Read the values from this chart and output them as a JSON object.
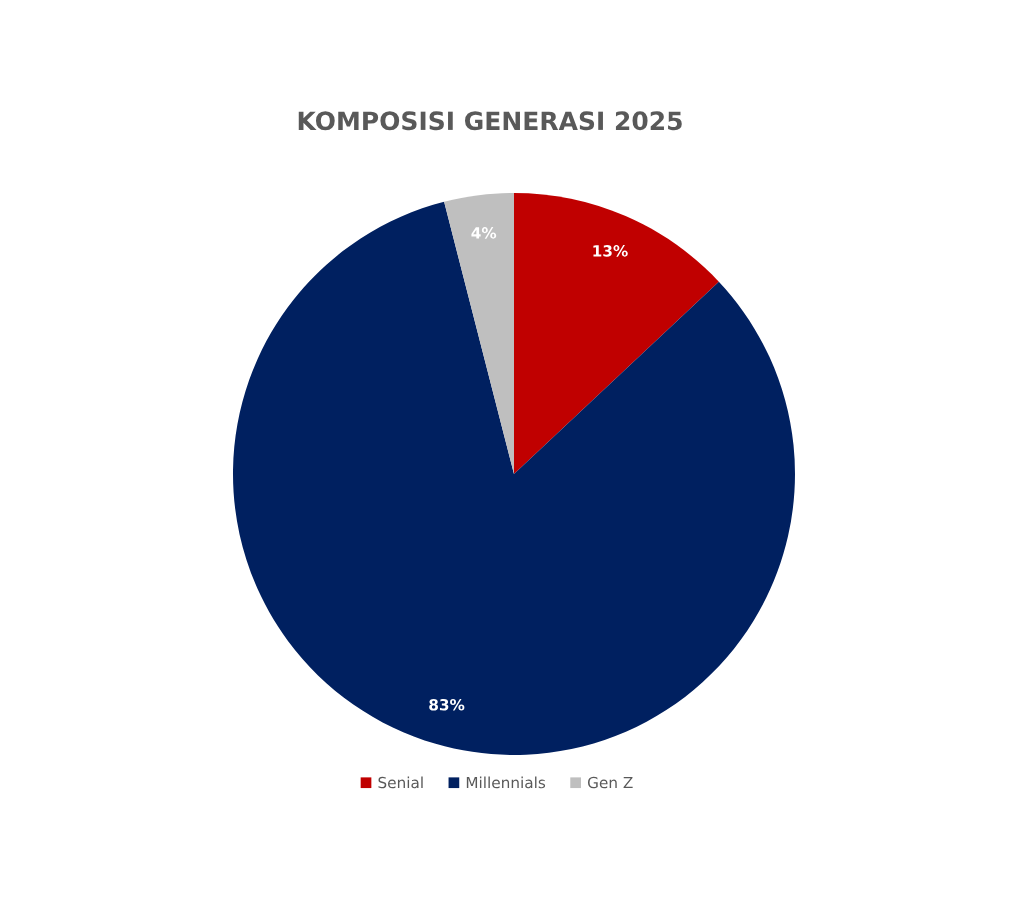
{
  "chart_data": {
    "type": "pie",
    "title": "KOMPOSISI GENERASI 2025",
    "categories": [
      "Senial",
      "Millennials",
      "Gen Z"
    ],
    "values": [
      13,
      83,
      4
    ],
    "colors": [
      "#c00000",
      "#002060",
      "#bfbfbf"
    ],
    "value_labels": [
      "13%",
      "83%",
      "4%"
    ],
    "legend": "bottom"
  }
}
